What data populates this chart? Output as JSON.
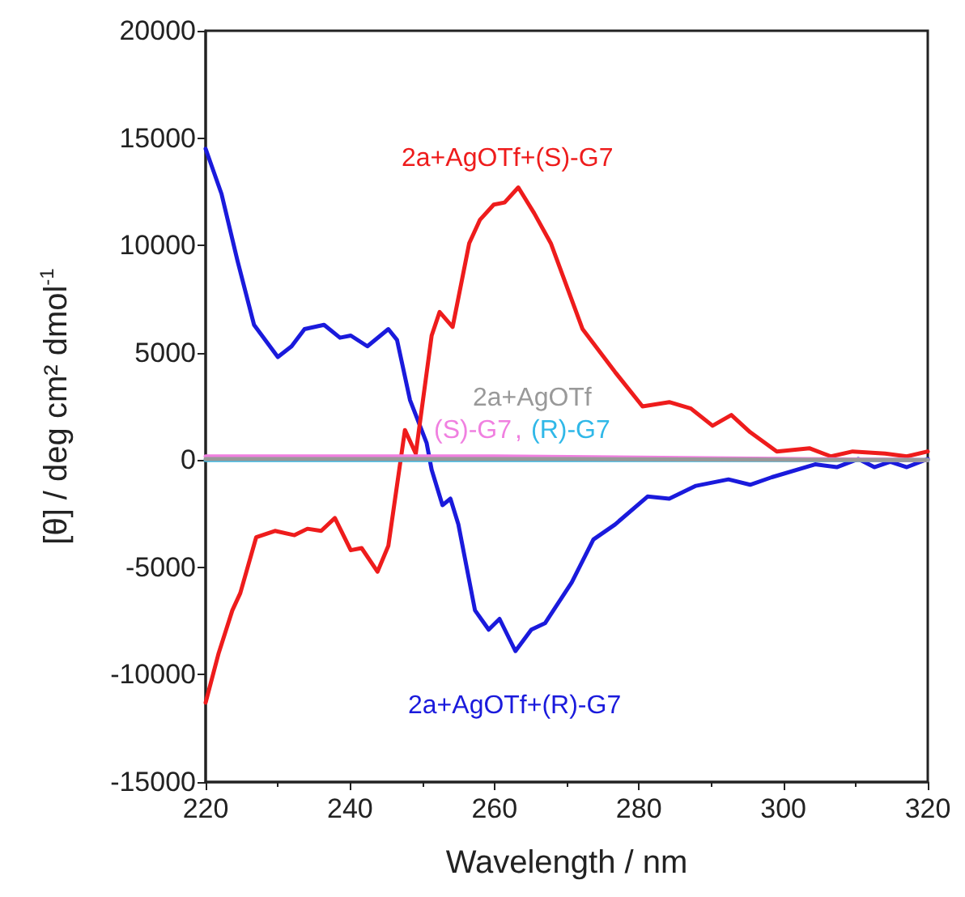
{
  "chart_data": {
    "type": "line",
    "xlabel": "Wavelength / nm",
    "ylabel": "[θ] / deg cm² dmol$^{-1}$",
    "xlim": [
      220,
      320
    ],
    "xticks": [
      220,
      240,
      260,
      280,
      300,
      320
    ],
    "ylim": [
      -15000,
      20000
    ],
    "yticks": [
      -15000,
      -10000,
      -5000,
      0,
      5000,
      10000,
      15000,
      20000
    ],
    "annotations": [
      ","
    ],
    "grid": false,
    "legend": false,
    "marker": "none",
    "line_style": "solid",
    "series": [
      {
        "name": "2a+AgOTf",
        "color": "#999999",
        "x": [
          220,
          270,
          320
        ],
        "values": [
          50,
          50,
          0
        ]
      },
      {
        "name": "(S)-G7",
        "color": "#f080e0",
        "x": [
          220,
          260,
          320
        ],
        "values": [
          170,
          170,
          0
        ]
      },
      {
        "name": "(R)-G7",
        "color": "#30b8e8",
        "x": [
          220,
          270,
          320
        ],
        "values": [
          0,
          0,
          0
        ]
      },
      {
        "name": "2a+AgOTf+(S)-G7",
        "color": "#ee1c1c",
        "x": [
          220,
          221.8,
          223.7,
          224.8,
          227,
          229.6,
          232.3,
          234.1,
          236,
          237.9,
          240.1,
          241.6,
          243.8,
          245.3,
          247.6,
          249.1,
          251.3,
          252.4,
          254.2,
          256.5,
          258,
          259.9,
          261.4,
          263.3,
          265.5,
          267.8,
          272.2,
          276.7,
          280.5,
          284.2,
          287.2,
          290.2,
          292.8,
          295.4,
          299.1,
          303.6,
          306.6,
          309.6,
          314.1,
          317.1,
          320
        ],
        "values": [
          -11300,
          -9000,
          -7000,
          -6200,
          -3600,
          -3300,
          -3500,
          -3200,
          -3300,
          -2700,
          -4200,
          -4100,
          -5200,
          -4000,
          1400,
          300,
          5800,
          6900,
          6200,
          10100,
          11200,
          11900,
          12000,
          12700,
          11500,
          10100,
          6100,
          4100,
          2500,
          2700,
          2400,
          1600,
          2100,
          1300,
          400,
          550,
          170,
          400,
          300,
          170,
          400
        ]
      },
      {
        "name": "2a+AgOTf+(R)-G7",
        "color": "#1a1adc",
        "x": [
          220,
          222.2,
          224.4,
          226.7,
          230,
          231.9,
          233.7,
          236.4,
          238.6,
          240.1,
          242.4,
          245.3,
          246.5,
          248.3,
          250.6,
          251.3,
          252.8,
          253.9,
          255,
          257.3,
          259.2,
          260.7,
          262.9,
          265.1,
          267,
          270.7,
          273.7,
          276.7,
          281.2,
          284.2,
          287.9,
          292.4,
          295.4,
          298.4,
          304.4,
          307.4,
          310.4,
          312.6,
          314.8,
          317.1,
          320
        ],
        "values": [
          14500,
          12400,
          9300,
          6300,
          4800,
          5300,
          6100,
          6300,
          5700,
          5800,
          5300,
          6100,
          5600,
          2800,
          800,
          -450,
          -2100,
          -1800,
          -3000,
          -7000,
          -7900,
          -7400,
          -8900,
          -7900,
          -7600,
          -5700,
          -3700,
          -3000,
          -1700,
          -1800,
          -1200,
          -900,
          -1150,
          -800,
          -200,
          -330,
          50,
          -330,
          -80,
          -330,
          50
        ]
      }
    ]
  }
}
